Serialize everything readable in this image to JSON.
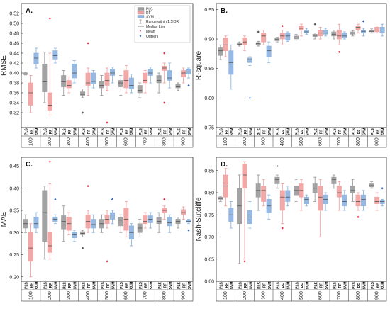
{
  "models": [
    "PLS",
    "RF",
    "SVM"
  ],
  "colors": {
    "PLS": "#9e9e9e",
    "RF": "#f2a3a3",
    "SVM": "#8fb5e0",
    "outline": "#555555",
    "outlier_blue": "#2f5fb5",
    "outlier_red": "#e0304a"
  },
  "legend": {
    "items": [
      "PLS",
      "RF",
      "SVM"
    ],
    "range_label": "Range within 1.5IQR",
    "median_label": "Median Line",
    "mean_label": "Mean",
    "outliers_label": "Outliers"
  },
  "chart_data": [
    {
      "type": "box",
      "panel_label": "A.",
      "ylabel": "RMSE",
      "ylim": [
        0.29,
        0.54
      ],
      "yticks": [
        0.32,
        0.34,
        0.36,
        0.38,
        0.4,
        0.42,
        0.44,
        0.46,
        0.48,
        0.5,
        0.52
      ],
      "categories": [
        "100",
        "200",
        "300",
        "400",
        "500",
        "600",
        "700",
        "800",
        "900"
      ],
      "series": [
        {
          "name": "PLS",
          "boxes": [
            [
              0.396,
              0.397,
              0.398,
              0.4,
              0.401
            ],
            [
              0.34,
              0.362,
              0.382,
              0.418,
              0.442
            ],
            [
              0.355,
              0.372,
              0.382,
              0.395,
              0.405
            ],
            [
              0.35,
              0.355,
              0.357,
              0.362,
              0.368
            ],
            [
              0.355,
              0.37,
              0.375,
              0.383,
              0.395
            ],
            [
              0.355,
              0.372,
              0.38,
              0.385,
              0.395
            ],
            [
              0.35,
              0.36,
              0.365,
              0.375,
              0.38
            ],
            [
              0.36,
              0.38,
              0.385,
              0.395,
              0.4
            ],
            [
              0.365,
              0.37,
              0.372,
              0.378,
              0.38
            ]
          ]
        },
        {
          "name": "RF",
          "boxes": [
            [
              0.32,
              0.335,
              0.36,
              0.38,
              0.395
            ],
            [
              0.315,
              0.325,
              0.335,
              0.36,
              0.44
            ],
            [
              0.36,
              0.37,
              0.375,
              0.385,
              0.392
            ],
            [
              0.355,
              0.375,
              0.38,
              0.4,
              0.41
            ],
            [
              0.365,
              0.375,
              0.385,
              0.4,
              0.41
            ],
            [
              0.36,
              0.37,
              0.385,
              0.405,
              0.415
            ],
            [
              0.36,
              0.38,
              0.385,
              0.4,
              0.405
            ],
            [
              0.38,
              0.405,
              0.41,
              0.414,
              0.42
            ],
            [
              0.38,
              0.392,
              0.4,
              0.405,
              0.41
            ]
          ]
        },
        {
          "name": "SVM",
          "boxes": [
            [
              0.41,
              0.418,
              0.43,
              0.44,
              0.45
            ],
            [
              0.42,
              0.428,
              0.435,
              0.445,
              0.45
            ],
            [
              0.38,
              0.39,
              0.4,
              0.418,
              0.425
            ],
            [
              0.37,
              0.378,
              0.383,
              0.4,
              0.405
            ],
            [
              0.38,
              0.395,
              0.4,
              0.408,
              0.412
            ],
            [
              0.36,
              0.368,
              0.375,
              0.39,
              0.398
            ],
            [
              0.38,
              0.395,
              0.4,
              0.408,
              0.412
            ],
            [
              0.37,
              0.385,
              0.39,
              0.405,
              0.42
            ],
            [
              0.39,
              0.398,
              0.402,
              0.408,
              0.41
            ]
          ]
        }
      ],
      "outliers": [
        {
          "x": "200",
          "model": "RF",
          "y": 0.51
        },
        {
          "x": "400",
          "model": "RF",
          "y": 0.46
        },
        {
          "x": "400",
          "model": "PLS",
          "y": 0.32
        },
        {
          "x": "500",
          "model": "RF",
          "y": 0.3
        },
        {
          "x": "800",
          "model": "RF",
          "y": 0.44
        },
        {
          "x": "800",
          "model": "RF",
          "y": 0.34
        },
        {
          "x": "900",
          "model": "SVM",
          "y": 0.375
        }
      ]
    },
    {
      "type": "box",
      "panel_label": "B.",
      "ylabel": "R-square",
      "ylim": [
        0.75,
        0.96
      ],
      "yticks": [
        0.75,
        0.8,
        0.85,
        0.9,
        0.95
      ],
      "categories": [
        "100",
        "200",
        "300",
        "400",
        "500",
        "600",
        "700",
        "800",
        "900"
      ],
      "series": [
        {
          "name": "PLS",
          "boxes": [
            [
              0.865,
              0.872,
              0.88,
              0.885,
              0.89
            ],
            [
              0.888,
              0.89,
              0.891,
              0.893,
              0.895
            ],
            [
              0.888,
              0.89,
              0.892,
              0.894,
              0.896
            ],
            [
              0.895,
              0.897,
              0.899,
              0.901,
              0.903
            ],
            [
              0.898,
              0.9,
              0.902,
              0.905,
              0.908
            ],
            [
              0.9,
              0.904,
              0.906,
              0.908,
              0.91
            ],
            [
              0.9,
              0.905,
              0.908,
              0.912,
              0.915
            ],
            [
              0.905,
              0.908,
              0.91,
              0.912,
              0.914
            ],
            [
              0.91,
              0.912,
              0.913,
              0.915,
              0.917
            ]
          ]
        },
        {
          "name": "RF",
          "boxes": [
            [
              0.87,
              0.88,
              0.89,
              0.902,
              0.905
            ],
            [
              0.88,
              0.89,
              0.895,
              0.902,
              0.905
            ],
            [
              0.89,
              0.895,
              0.905,
              0.91,
              0.915
            ],
            [
              0.89,
              0.9,
              0.905,
              0.91,
              0.915
            ],
            [
              0.905,
              0.915,
              0.918,
              0.922,
              0.925
            ],
            [
              0.9,
              0.905,
              0.91,
              0.915,
              0.92
            ],
            [
              0.89,
              0.9,
              0.905,
              0.915,
              0.925
            ],
            [
              0.91,
              0.915,
              0.92,
              0.922,
              0.925
            ],
            [
              0.91,
              0.912,
              0.915,
              0.92,
              0.922
            ]
          ]
        },
        {
          "name": "SVM",
          "boxes": [
            [
              0.815,
              0.84,
              0.86,
              0.88,
              0.89
            ],
            [
              0.855,
              0.86,
              0.865,
              0.868,
              0.87
            ],
            [
              0.86,
              0.87,
              0.88,
              0.888,
              0.895
            ],
            [
              0.896,
              0.898,
              0.905,
              0.91,
              0.912
            ],
            [
              0.908,
              0.91,
              0.912,
              0.915,
              0.918
            ],
            [
              0.905,
              0.908,
              0.91,
              0.915,
              0.918
            ],
            [
              0.9,
              0.902,
              0.905,
              0.91,
              0.912
            ],
            [
              0.905,
              0.91,
              0.913,
              0.915,
              0.918
            ],
            [
              0.905,
              0.91,
              0.915,
              0.92,
              0.925
            ]
          ]
        }
      ],
      "outliers": [
        {
          "x": "200",
          "model": "SVM",
          "y": 0.8
        },
        {
          "x": "300",
          "model": "PLS",
          "y": 0.912
        },
        {
          "x": "400",
          "model": "RF",
          "y": 0.922
        },
        {
          "x": "600",
          "model": "PLS",
          "y": 0.925
        },
        {
          "x": "700",
          "model": "RF",
          "y": 0.878
        },
        {
          "x": "800",
          "model": "SVM",
          "y": 0.93
        }
      ]
    },
    {
      "type": "box",
      "panel_label": "C.",
      "ylabel": "MAE",
      "ylim": [
        0.19,
        0.47
      ],
      "yticks": [
        0.2,
        0.25,
        0.3,
        0.35,
        0.4,
        0.45
      ],
      "categories": [
        "100",
        "200",
        "300",
        "400",
        "500",
        "600",
        "700",
        "800",
        "900"
      ],
      "series": [
        {
          "name": "PLS",
          "boxes": [
            [
              0.3,
              0.31,
              0.32,
              0.33,
              0.34
            ],
            [
              0.24,
              0.28,
              0.345,
              0.395,
              0.405
            ],
            [
              0.28,
              0.308,
              0.325,
              0.338,
              0.36
            ],
            [
              0.29,
              0.295,
              0.298,
              0.302,
              0.305
            ],
            [
              0.3,
              0.31,
              0.32,
              0.33,
              0.34
            ],
            [
              0.3,
              0.315,
              0.328,
              0.335,
              0.34
            ],
            [
              0.29,
              0.3,
              0.31,
              0.32,
              0.33
            ],
            [
              0.3,
              0.32,
              0.325,
              0.335,
              0.345
            ],
            [
              0.31,
              0.32,
              0.325,
              0.33,
              0.335
            ]
          ]
        },
        {
          "name": "RF",
          "boxes": [
            [
              0.2,
              0.235,
              0.265,
              0.3,
              0.32
            ],
            [
              0.24,
              0.255,
              0.27,
              0.3,
              0.41
            ],
            [
              0.295,
              0.305,
              0.32,
              0.335,
              0.345
            ],
            [
              0.3,
              0.31,
              0.325,
              0.34,
              0.35
            ],
            [
              0.31,
              0.32,
              0.33,
              0.34,
              0.35
            ],
            [
              0.29,
              0.305,
              0.33,
              0.355,
              0.37
            ],
            [
              0.31,
              0.32,
              0.325,
              0.338,
              0.345
            ],
            [
              0.33,
              0.345,
              0.35,
              0.355,
              0.36
            ],
            [
              0.33,
              0.34,
              0.345,
              0.352,
              0.358
            ]
          ]
        },
        {
          "name": "SVM",
          "boxes": [
            [
              0.3,
              0.31,
              0.32,
              0.335,
              0.345
            ],
            [
              0.32,
              0.325,
              0.33,
              0.335,
              0.34
            ],
            [
              0.28,
              0.288,
              0.295,
              0.3,
              0.305
            ],
            [
              0.3,
              0.31,
              0.318,
              0.33,
              0.34
            ],
            [
              0.32,
              0.33,
              0.335,
              0.345,
              0.35
            ],
            [
              0.27,
              0.285,
              0.3,
              0.315,
              0.32
            ],
            [
              0.31,
              0.322,
              0.33,
              0.338,
              0.345
            ],
            [
              0.3,
              0.315,
              0.322,
              0.335,
              0.34
            ],
            [
              0.32,
              0.323,
              0.325,
              0.328,
              0.33
            ]
          ]
        }
      ],
      "outliers": [
        {
          "x": "200",
          "model": "RF",
          "y": 0.46
        },
        {
          "x": "200",
          "model": "SVM",
          "y": 0.375
        },
        {
          "x": "400",
          "model": "RF",
          "y": 0.405
        },
        {
          "x": "400",
          "model": "PLS",
          "y": 0.265
        },
        {
          "x": "500",
          "model": "SVM",
          "y": 0.375
        },
        {
          "x": "500",
          "model": "RF",
          "y": 0.235
        },
        {
          "x": "800",
          "model": "RF",
          "y": 0.375
        },
        {
          "x": "900",
          "model": "SVM",
          "y": 0.305
        }
      ]
    },
    {
      "type": "box",
      "panel_label": "D.",
      "ylabel": "Nash-Sutcliffe",
      "ylim": [
        0.6,
        0.88
      ],
      "yticks": [
        0.6,
        0.65,
        0.7,
        0.75,
        0.8,
        0.85
      ],
      "categories": [
        "100",
        "200",
        "300",
        "400",
        "500",
        "600",
        "700",
        "800",
        "900"
      ],
      "series": [
        {
          "name": "PLS",
          "boxes": [
            [
              0.78,
              0.785,
              0.787,
              0.79,
              0.792
            ],
            [
              0.64,
              0.73,
              0.77,
              0.81,
              0.84
            ],
            [
              0.76,
              0.79,
              0.805,
              0.82,
              0.84
            ],
            [
              0.81,
              0.82,
              0.83,
              0.835,
              0.84
            ],
            [
              0.78,
              0.795,
              0.805,
              0.815,
              0.83
            ],
            [
              0.78,
              0.8,
              0.81,
              0.82,
              0.835
            ],
            [
              0.81,
              0.82,
              0.83,
              0.835,
              0.84
            ],
            [
              0.78,
              0.8,
              0.805,
              0.815,
              0.83
            ],
            [
              0.81,
              0.813,
              0.816,
              0.82,
              0.825
            ]
          ]
        },
        {
          "name": "RF",
          "boxes": [
            [
              0.77,
              0.79,
              0.815,
              0.84,
              0.855
            ],
            [
              0.65,
              0.81,
              0.84,
              0.865,
              0.87
            ],
            [
              0.77,
              0.78,
              0.805,
              0.815,
              0.83
            ],
            [
              0.73,
              0.76,
              0.79,
              0.805,
              0.82
            ],
            [
              0.76,
              0.79,
              0.805,
              0.82,
              0.83
            ],
            [
              0.7,
              0.76,
              0.79,
              0.815,
              0.83
            ],
            [
              0.76,
              0.79,
              0.8,
              0.815,
              0.825
            ],
            [
              0.76,
              0.77,
              0.78,
              0.795,
              0.8
            ],
            [
              0.76,
              0.775,
              0.78,
              0.79,
              0.8
            ]
          ]
        },
        {
          "name": "SVM",
          "boxes": [
            [
              0.72,
              0.735,
              0.75,
              0.765,
              0.78
            ],
            [
              0.72,
              0.73,
              0.745,
              0.76,
              0.78
            ],
            [
              0.74,
              0.755,
              0.77,
              0.785,
              0.795
            ],
            [
              0.77,
              0.78,
              0.79,
              0.805,
              0.815
            ],
            [
              0.77,
              0.775,
              0.785,
              0.79,
              0.795
            ],
            [
              0.76,
              0.775,
              0.785,
              0.795,
              0.8
            ],
            [
              0.76,
              0.77,
              0.78,
              0.795,
              0.805
            ],
            [
              0.76,
              0.77,
              0.785,
              0.795,
              0.805
            ],
            [
              0.77,
              0.775,
              0.78,
              0.783,
              0.785
            ]
          ]
        }
      ],
      "outliers": [
        {
          "x": "200",
          "model": "RF",
          "y": 0.645
        },
        {
          "x": "400",
          "model": "PLS",
          "y": 0.86
        },
        {
          "x": "400",
          "model": "RF",
          "y": 0.72
        },
        {
          "x": "800",
          "model": "RF",
          "y": 0.745
        },
        {
          "x": "900",
          "model": "SVM",
          "y": 0.81
        }
      ]
    }
  ]
}
